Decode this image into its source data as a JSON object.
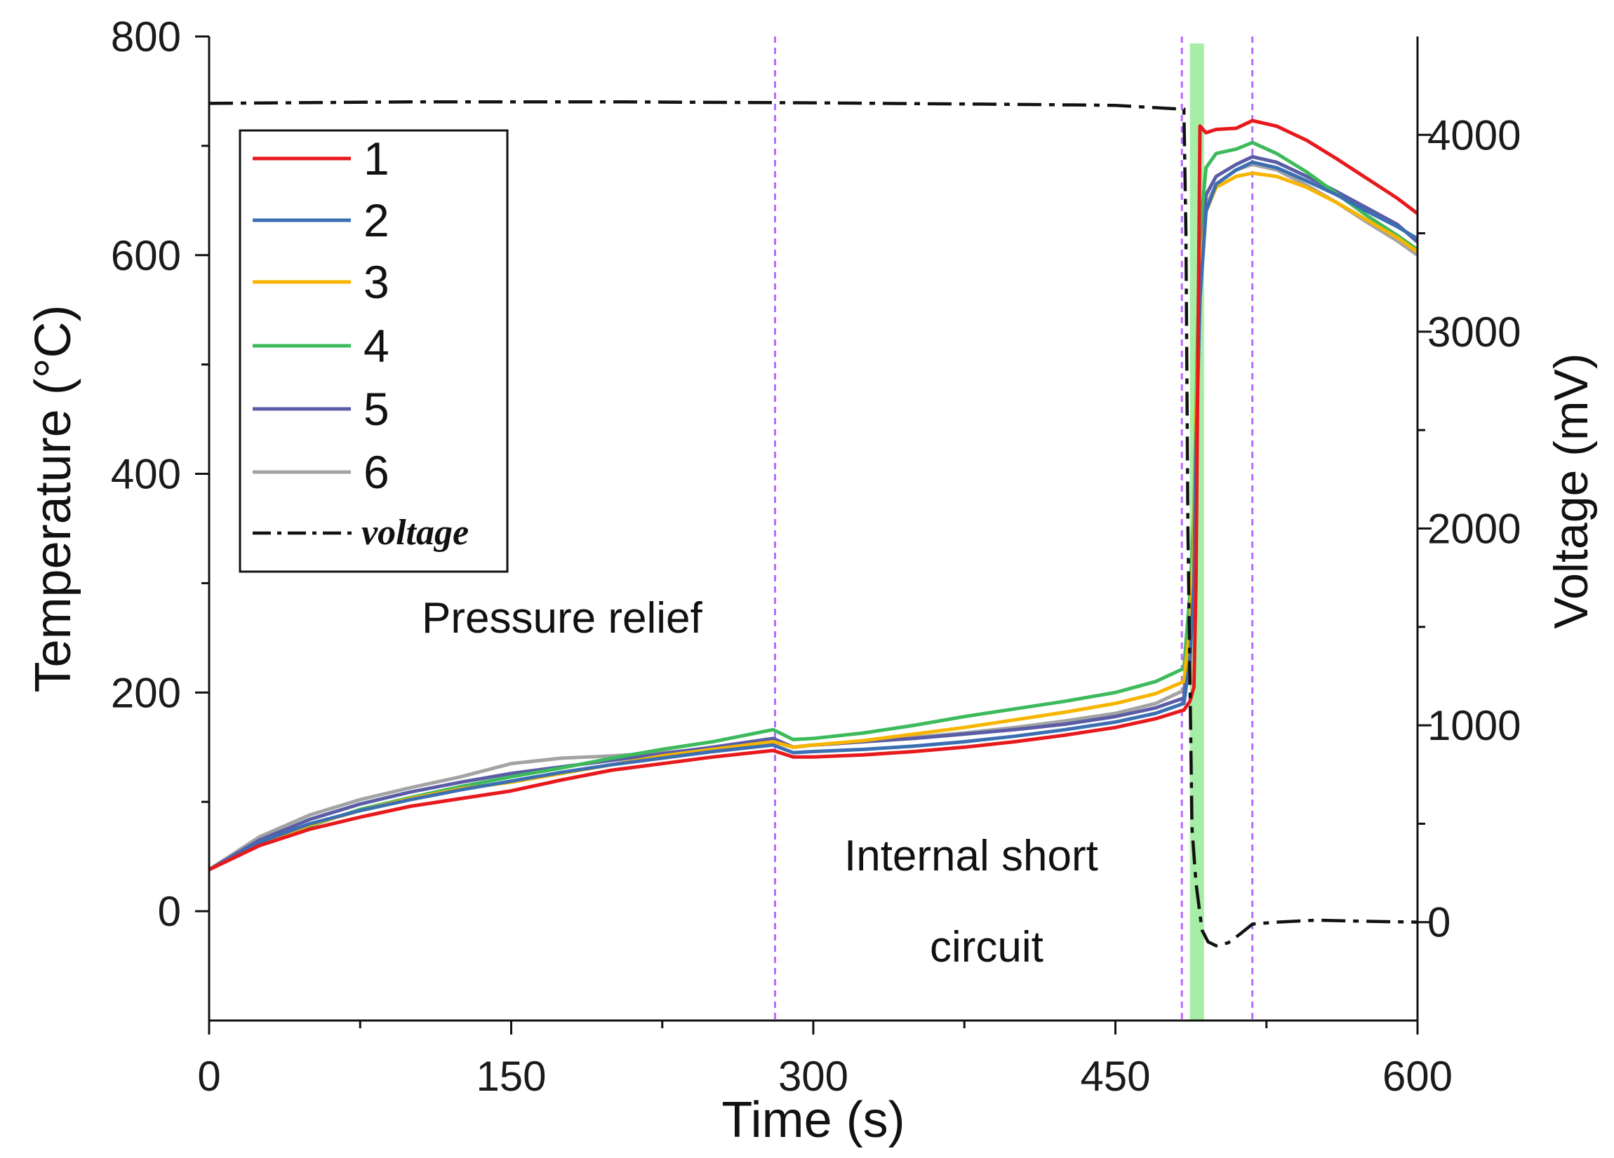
{
  "chart_data": {
    "type": "line",
    "xlabel": "Time (s)",
    "ylabel": "Temperature (°C)",
    "y2label": "Voltage (mV)",
    "xlim": [
      0,
      600
    ],
    "ylim": [
      -100,
      800
    ],
    "y2lim": [
      -500,
      4500
    ],
    "xticks": [
      0,
      150,
      300,
      450,
      600
    ],
    "yticks": [
      0,
      200,
      400,
      600,
      800
    ],
    "y2ticks": [
      0,
      1000,
      2000,
      3000,
      4000
    ],
    "grid": false,
    "legend": {
      "position": "upper-left",
      "frame": true
    },
    "x": [
      0,
      25,
      50,
      75,
      100,
      125,
      150,
      175,
      200,
      225,
      250,
      280,
      290,
      300,
      325,
      350,
      375,
      400,
      425,
      450,
      470,
      484,
      487,
      489,
      490,
      492,
      495,
      500,
      510,
      518,
      530,
      545,
      560,
      575,
      590,
      600
    ],
    "series": [
      {
        "name": "1",
        "color": "#e8191d",
        "values": [
          38,
          60,
          75,
          86,
          96,
          103,
          110,
          120,
          129,
          135,
          141,
          147,
          141,
          141,
          143,
          146,
          150,
          155,
          161,
          168,
          176,
          184,
          192,
          205,
          300,
          718,
          712,
          715,
          716,
          723,
          718,
          705,
          688,
          670,
          652,
          638
        ]
      },
      {
        "name": "2",
        "color": "#3b6fb2",
        "values": [
          38,
          63,
          80,
          92,
          102,
          111,
          119,
          127,
          134,
          140,
          146,
          152,
          145,
          146,
          148,
          151,
          155,
          160,
          166,
          173,
          181,
          190,
          230,
          300,
          420,
          560,
          640,
          665,
          678,
          685,
          680,
          668,
          655,
          640,
          626,
          615
        ]
      },
      {
        "name": "3",
        "color": "#f7b500",
        "values": [
          38,
          62,
          79,
          92,
          103,
          112,
          118,
          126,
          134,
          142,
          148,
          155,
          150,
          152,
          156,
          162,
          168,
          175,
          182,
          190,
          199,
          210,
          260,
          340,
          450,
          580,
          640,
          662,
          672,
          675,
          672,
          662,
          648,
          632,
          616,
          603
        ]
      },
      {
        "name": "4",
        "color": "#3dba5c",
        "values": [
          38,
          62,
          78,
          93,
          104,
          114,
          123,
          131,
          140,
          148,
          155,
          166,
          157,
          158,
          163,
          170,
          178,
          185,
          192,
          200,
          210,
          222,
          290,
          360,
          460,
          620,
          680,
          693,
          697,
          703,
          693,
          676,
          656,
          636,
          618,
          605
        ]
      },
      {
        "name": "5",
        "color": "#5a5ca6",
        "values": [
          38,
          65,
          84,
          98,
          109,
          118,
          126,
          132,
          138,
          144,
          150,
          158,
          150,
          152,
          155,
          158,
          162,
          166,
          171,
          178,
          186,
          195,
          250,
          330,
          450,
          600,
          655,
          672,
          683,
          690,
          685,
          672,
          658,
          643,
          628,
          612
        ]
      },
      {
        "name": "6",
        "color": "#a3a3a3",
        "values": [
          38,
          68,
          88,
          102,
          113,
          123,
          135,
          140,
          142,
          145,
          149,
          155,
          150,
          152,
          155,
          159,
          163,
          168,
          174,
          181,
          190,
          202,
          250,
          320,
          430,
          590,
          645,
          665,
          678,
          683,
          678,
          664,
          648,
          630,
          613,
          600
        ]
      }
    ],
    "voltage": {
      "name": "voltage",
      "axis": "right",
      "style": "dash-dot",
      "color": "#111111",
      "x": [
        0,
        100,
        200,
        300,
        400,
        450,
        484,
        485,
        486,
        488,
        490,
        493,
        496,
        500,
        506,
        512,
        518,
        530,
        550,
        570,
        600
      ],
      "values": [
        4160,
        4168,
        4168,
        4163,
        4155,
        4150,
        4130,
        3500,
        2000,
        480,
        200,
        -40,
        -100,
        -120,
        -105,
        -60,
        -10,
        0,
        10,
        5,
        0
      ]
    },
    "markers": {
      "vertical_lines_x": [
        281,
        483,
        518
      ],
      "line_color": "#b46cff",
      "band": {
        "x": [
          487,
          494
        ],
        "color": "#a6eea6"
      }
    },
    "annotations": [
      {
        "text": "Pressure relief"
      },
      {
        "lines": [
          "Internal short",
          "circuit"
        ]
      }
    ]
  }
}
